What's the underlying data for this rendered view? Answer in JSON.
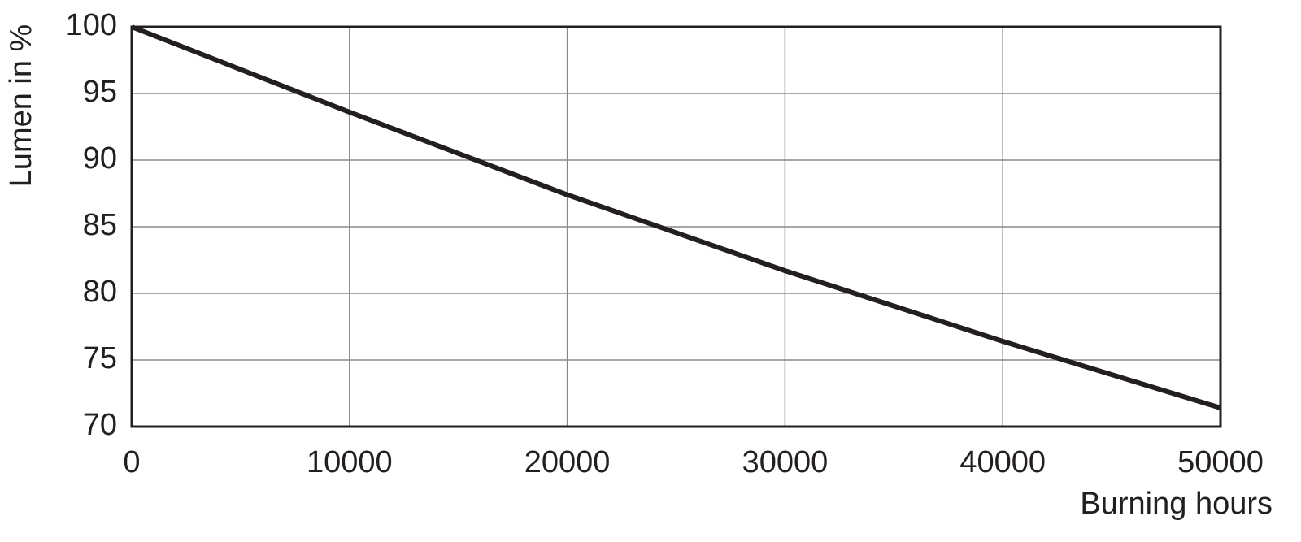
{
  "chart_data": {
    "type": "line",
    "x_label": "Burning hours",
    "y_label": "Lumen in %",
    "x": [
      0,
      10000,
      20000,
      30000,
      40000,
      50000
    ],
    "values": [
      100,
      93.6,
      87.4,
      81.7,
      76.4,
      71.4
    ],
    "color": "#231f20",
    "xlim": [
      0,
      50000
    ],
    "ylim": [
      70,
      100
    ],
    "xticks": [
      0,
      10000,
      20000,
      30000,
      40000,
      50000
    ],
    "yticks": [
      70,
      75,
      80,
      85,
      90,
      95,
      100
    ],
    "grid": true
  }
}
